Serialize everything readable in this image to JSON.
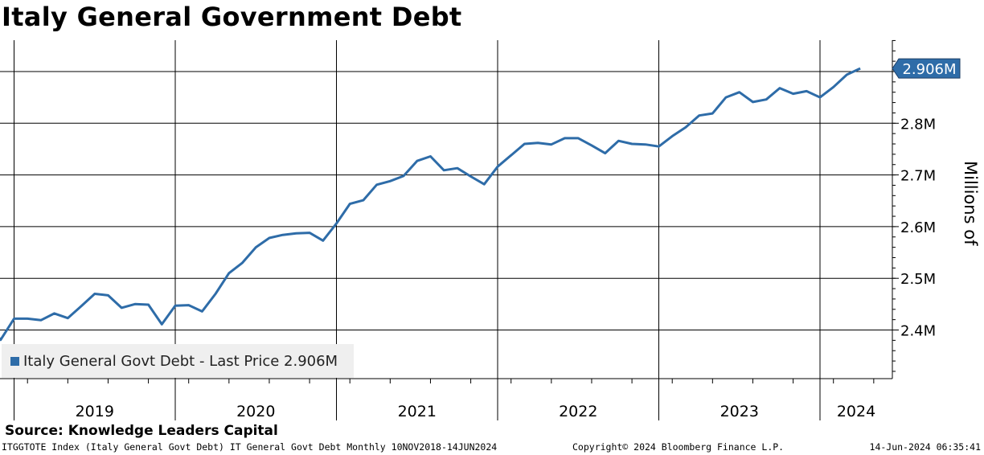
{
  "chart_data": {
    "type": "line",
    "title": "Italy General Government Debt",
    "ylabel": "Millions of",
    "ylim": [
      2.31,
      2.97
    ],
    "y_ticks": [
      {
        "value": 2.4,
        "label": "2.4M"
      },
      {
        "value": 2.5,
        "label": "2.5M"
      },
      {
        "value": 2.6,
        "label": "2.6M"
      },
      {
        "value": 2.7,
        "label": "2.7M"
      },
      {
        "value": 2.8,
        "label": "2.8M"
      },
      {
        "value": 2.9,
        "label": ""
      }
    ],
    "x_range": [
      "2018-11",
      "2024-06"
    ],
    "x_labels": [
      "2019",
      "2020",
      "2021",
      "2022",
      "2023",
      "2024"
    ],
    "grid": true,
    "legend_position": "bottom-left",
    "last_value_label": "2.906M",
    "series": [
      {
        "name": "Italy General Govt Debt - Last Price 2.906M",
        "color": "#2e6ca8",
        "x": [
          "2018-11",
          "2018-12",
          "2019-01",
          "2019-02",
          "2019-03",
          "2019-04",
          "2019-05",
          "2019-06",
          "2019-07",
          "2019-08",
          "2019-09",
          "2019-10",
          "2019-11",
          "2019-12",
          "2020-01",
          "2020-02",
          "2020-03",
          "2020-04",
          "2020-05",
          "2020-06",
          "2020-07",
          "2020-08",
          "2020-09",
          "2020-10",
          "2020-11",
          "2020-12",
          "2021-01",
          "2021-02",
          "2021-03",
          "2021-04",
          "2021-05",
          "2021-06",
          "2021-07",
          "2021-08",
          "2021-09",
          "2021-10",
          "2021-11",
          "2021-12",
          "2022-01",
          "2022-02",
          "2022-03",
          "2022-04",
          "2022-05",
          "2022-06",
          "2022-07",
          "2022-08",
          "2022-09",
          "2022-10",
          "2022-11",
          "2022-12",
          "2023-01",
          "2023-02",
          "2023-03",
          "2023-04",
          "2023-05",
          "2023-06",
          "2023-07",
          "2023-08",
          "2023-09",
          "2023-10",
          "2023-11",
          "2023-12",
          "2024-01",
          "2024-02",
          "2024-03",
          "2024-04"
        ],
        "values": [
          2.411,
          2.381,
          2.422,
          2.422,
          2.419,
          2.432,
          2.423,
          2.446,
          2.47,
          2.467,
          2.443,
          2.45,
          2.449,
          2.411,
          2.447,
          2.448,
          2.436,
          2.47,
          2.51,
          2.53,
          2.56,
          2.578,
          2.584,
          2.587,
          2.588,
          2.573,
          2.606,
          2.644,
          2.651,
          2.681,
          2.688,
          2.698,
          2.727,
          2.736,
          2.709,
          2.713,
          2.697,
          2.682,
          2.716,
          2.738,
          2.76,
          2.762,
          2.759,
          2.771,
          2.771,
          2.757,
          2.742,
          2.766,
          2.76,
          2.759,
          2.755,
          2.775,
          2.792,
          2.815,
          2.819,
          2.85,
          2.86,
          2.841,
          2.846,
          2.868,
          2.857,
          2.862,
          2.85,
          2.87,
          2.894,
          2.906
        ]
      }
    ]
  },
  "source_text": "Source: Knowledge Leaders Capital",
  "footer": {
    "left": "ITGGTOTE Index (Italy General Govt Debt) IT General Govt Debt  Monthly 10NOV2018-14JUN2024",
    "center": "Copyright© 2024 Bloomberg Finance L.P.",
    "right": "14-Jun-2024 06:35:41"
  }
}
